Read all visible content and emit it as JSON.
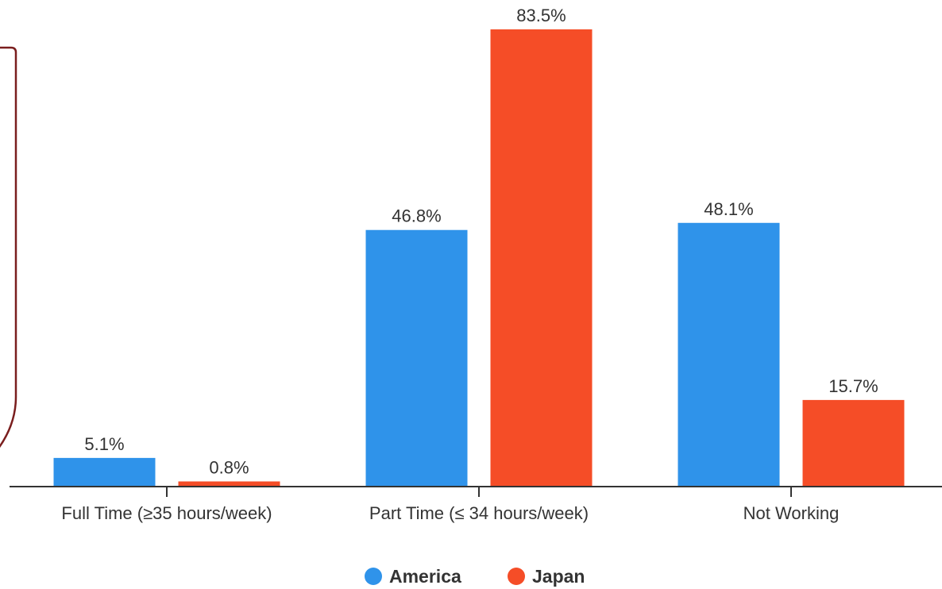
{
  "chart_data": {
    "type": "bar",
    "categories": [
      "Full Time (≥35 hours/week)",
      "Part Time (≤ 34 hours/week)",
      "Not Working"
    ],
    "series": [
      {
        "name": "America",
        "color": "#2f93ea",
        "values": [
          5.1,
          46.8,
          48.1
        ],
        "labels": [
          "5.1%",
          "46.8%",
          "48.1%"
        ]
      },
      {
        "name": "Japan",
        "color": "#f54d27",
        "values": [
          0.8,
          83.5,
          15.7
        ],
        "labels": [
          "0.8%",
          "83.5%",
          "15.7%"
        ]
      }
    ],
    "ylim": [
      0,
      83.5
    ],
    "grid": false,
    "legend_position": "bottom-center"
  },
  "decor": {
    "callout_border_color": "#7a1e1e"
  }
}
